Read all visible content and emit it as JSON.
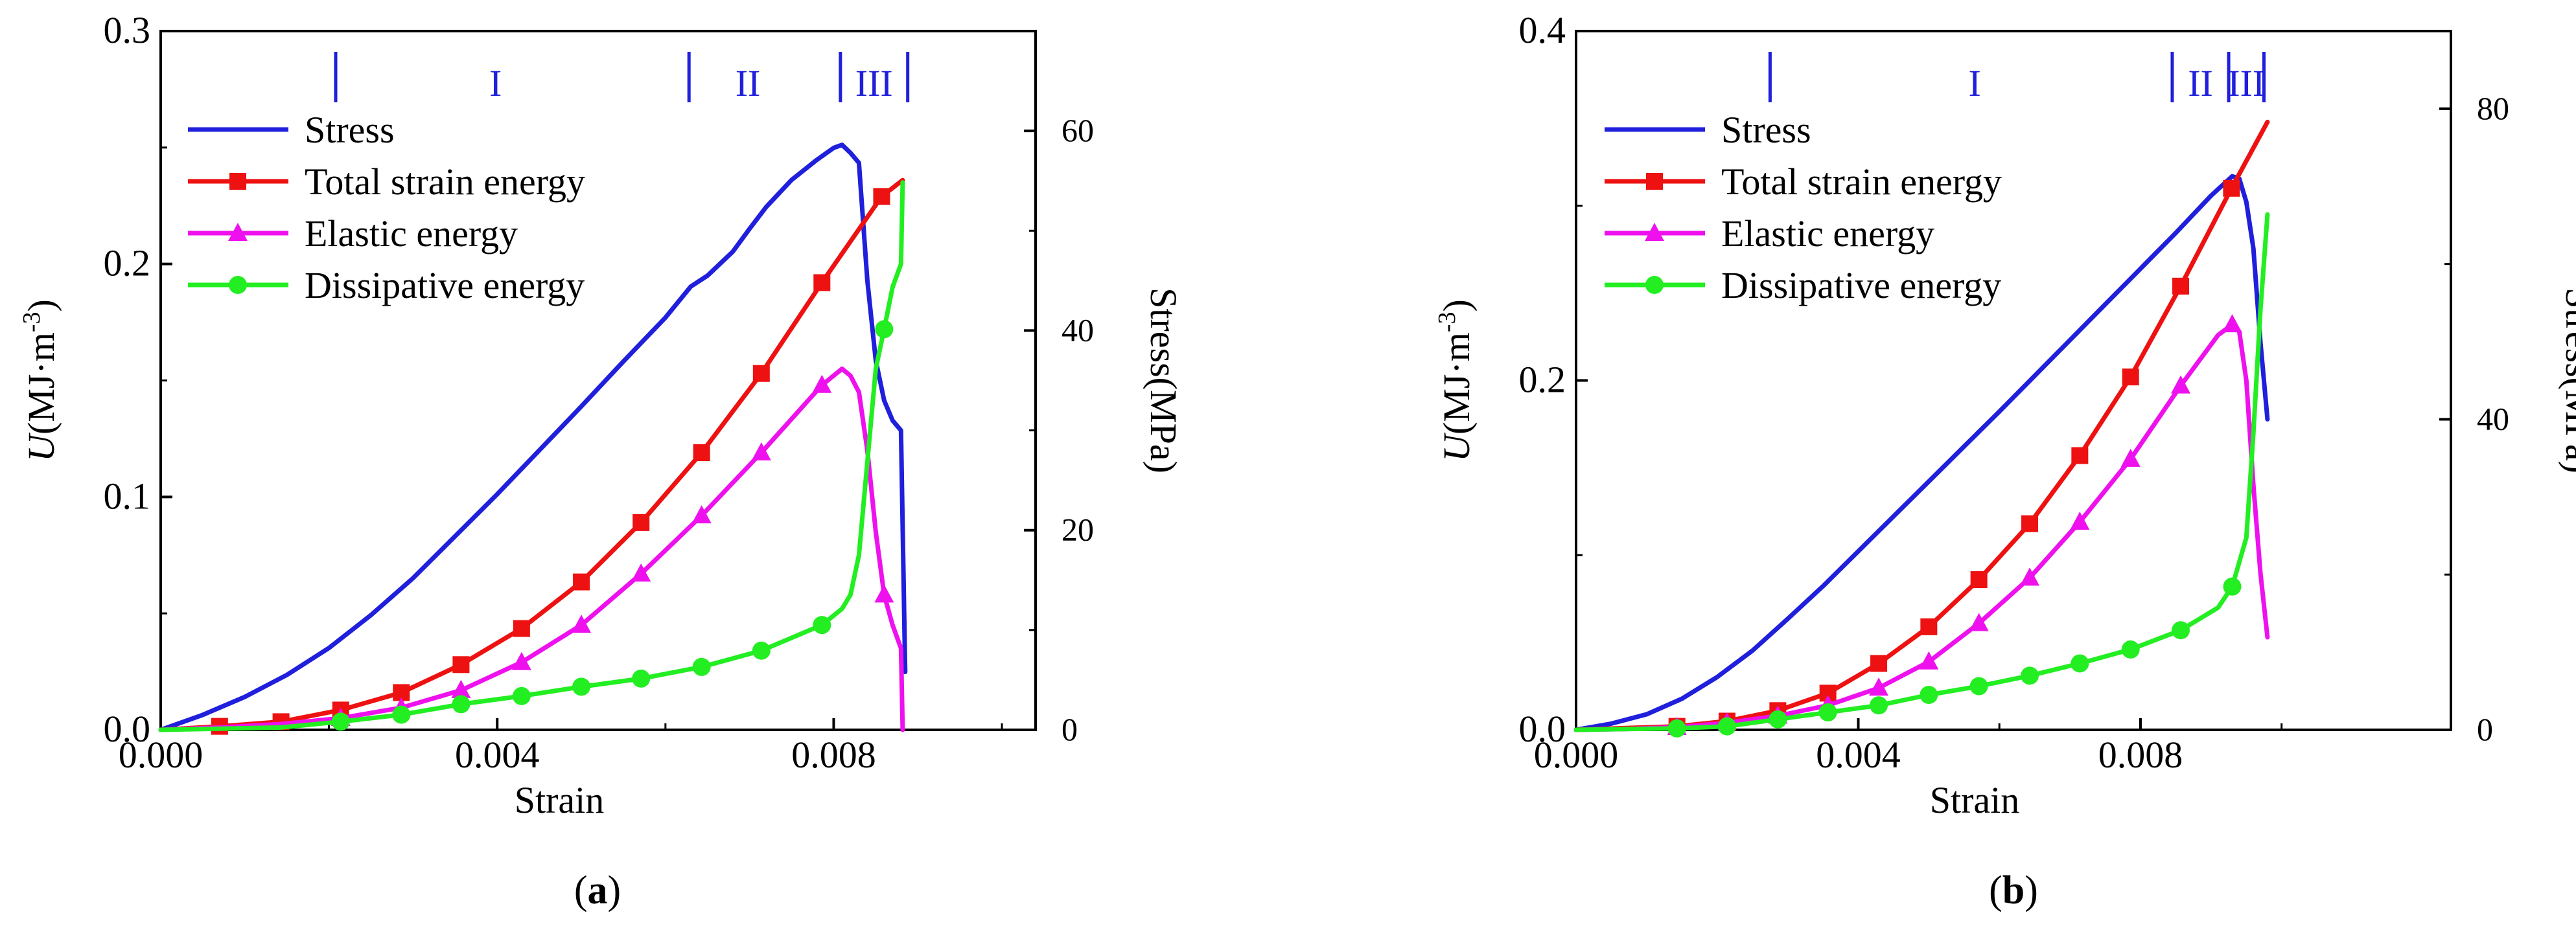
{
  "colors": {
    "stress": "#1f1fdc",
    "total": "#ee1111",
    "elastic": "#ee11ee",
    "dissipative": "#22ee22",
    "stage": "#1f1fdc",
    "axis": "#000000"
  },
  "chart_data": [
    {
      "type": "line",
      "panel_label": "a",
      "xlabel": "Strain",
      "ylabel_main": "U",
      "ylabel_unit": "(MJ·m",
      "ylabel_exp": "-3",
      "ylabel_close": ")",
      "y2label": "Stress(MPa)",
      "xlim": [
        0,
        0.0104
      ],
      "ylim": [
        0,
        0.3
      ],
      "y2lim": [
        0,
        70
      ],
      "xticks": [
        0,
        0.004,
        0.008
      ],
      "xtick_labels": [
        "0.000",
        "0.004",
        "0.008"
      ],
      "yticks": [
        0,
        0.1,
        0.2,
        0.3
      ],
      "ytick_labels": [
        "0.0",
        "0.1",
        "0.2",
        "0.3"
      ],
      "y2ticks": [
        0,
        20,
        40,
        60
      ],
      "y2tick_labels": [
        "0",
        "20",
        "40",
        "60"
      ],
      "legend": [
        "Stress",
        "Total strain energy",
        "Elastic energy",
        "Dissipative energy"
      ],
      "stages": {
        "boundaries": [
          0.00208,
          0.00628,
          0.00808,
          0.00888
        ],
        "labels": [
          {
            "text": "I",
            "x": 0.00398
          },
          {
            "text": "II",
            "x": 0.00698
          },
          {
            "text": "III",
            "x": 0.00848
          }
        ]
      },
      "series": [
        {
          "name": "Stress",
          "axis": "y2",
          "x": [
            0,
            0.0005,
            0.001,
            0.0015,
            0.002,
            0.0025,
            0.003,
            0.0035,
            0.004,
            0.0045,
            0.005,
            0.0055,
            0.006,
            0.0063,
            0.0065,
            0.0068,
            0.007,
            0.0072,
            0.0075,
            0.0078,
            0.008,
            0.0081,
            0.0082,
            0.0083,
            0.0084,
            0.0085,
            0.0086,
            0.0087,
            0.0088,
            0.00885
          ],
          "y": [
            0,
            1.5,
            3.3,
            5.5,
            8.2,
            11.5,
            15.2,
            19.4,
            23.6,
            28.0,
            32.4,
            36.9,
            41.3,
            44.4,
            45.5,
            47.9,
            50.2,
            52.4,
            55.1,
            57.1,
            58.3,
            58.6,
            57.8,
            56.8,
            45.0,
            37.0,
            33.0,
            31.0,
            30.0,
            5.8
          ]
        },
        {
          "name": "Total strain energy",
          "axis": "y",
          "x": [
            0,
            0.0007,
            0.00143,
            0.00214,
            0.00286,
            0.00357,
            0.00429,
            0.005,
            0.00571,
            0.00643,
            0.00714,
            0.00786,
            0.00857,
            0.00882
          ],
          "y": [
            0,
            0.0015,
            0.0035,
            0.0085,
            0.016,
            0.028,
            0.0435,
            0.0635,
            0.089,
            0.119,
            0.153,
            0.192,
            0.229,
            0.236
          ],
          "markers": [
            0.0007,
            0.00143,
            0.00214,
            0.00286,
            0.00357,
            0.00429,
            0.005,
            0.00571,
            0.00643,
            0.00714,
            0.00786,
            0.00857
          ]
        },
        {
          "name": "Elastic energy",
          "axis": "y",
          "x": [
            0,
            0.0007,
            0.00143,
            0.00214,
            0.00286,
            0.00357,
            0.00429,
            0.005,
            0.00571,
            0.00643,
            0.00714,
            0.00786,
            0.0081,
            0.0082,
            0.0083,
            0.0084,
            0.0085,
            0.0086,
            0.0087,
            0.0088,
            0.00882
          ],
          "y": [
            0,
            0.001,
            0.0025,
            0.005,
            0.0095,
            0.017,
            0.029,
            0.045,
            0.067,
            0.092,
            0.119,
            0.148,
            0.155,
            0.152,
            0.145,
            0.12,
            0.085,
            0.058,
            0.045,
            0.035,
            0
          ],
          "markers": [
            0.00214,
            0.00286,
            0.00357,
            0.00429,
            0.005,
            0.00571,
            0.00643,
            0.00714,
            0.00786,
            0.0086
          ]
        },
        {
          "name": "Dissipative energy",
          "axis": "y",
          "x": [
            0,
            0.0007,
            0.00143,
            0.00214,
            0.00286,
            0.00357,
            0.00429,
            0.005,
            0.00571,
            0.00643,
            0.00714,
            0.00786,
            0.0081,
            0.0082,
            0.0083,
            0.0084,
            0.0085,
            0.0086,
            0.0087,
            0.0088,
            0.00882
          ],
          "y": [
            0,
            0.0005,
            0.001,
            0.0035,
            0.0065,
            0.011,
            0.0145,
            0.0185,
            0.022,
            0.027,
            0.034,
            0.045,
            0.052,
            0.058,
            0.075,
            0.115,
            0.155,
            0.172,
            0.19,
            0.2,
            0.235
          ],
          "markers": [
            0.00214,
            0.00286,
            0.00357,
            0.00429,
            0.005,
            0.00571,
            0.00643,
            0.00714,
            0.00786,
            0.0086
          ]
        }
      ]
    },
    {
      "type": "line",
      "panel_label": "b",
      "xlabel": "Strain",
      "ylabel_main": "U",
      "ylabel_unit": "(MJ·m",
      "ylabel_exp": "-3",
      "ylabel_close": ")",
      "y2label": "Stress(MPa)",
      "xlim": [
        0,
        0.0124
      ],
      "ylim": [
        0,
        0.4
      ],
      "y2lim": [
        0,
        90
      ],
      "xticks": [
        0,
        0.004,
        0.008
      ],
      "xtick_labels": [
        "0.000",
        "0.004",
        "0.008"
      ],
      "yticks": [
        0,
        0.2,
        0.4
      ],
      "ytick_labels": [
        "0.0",
        "0.2",
        "0.4"
      ],
      "y2ticks": [
        0,
        40,
        80
      ],
      "y2tick_labels": [
        "0",
        "40",
        "80"
      ],
      "legend": [
        "Stress",
        "Total strain energy",
        "Elastic energy",
        "Dissipative energy"
      ],
      "stages": {
        "boundaries": [
          0.00275,
          0.00845,
          0.00925,
          0.00975
        ],
        "labels": [
          {
            "text": "I",
            "x": 0.00565
          },
          {
            "text": "II",
            "x": 0.00885
          },
          {
            "text": "III",
            "x": 0.0095
          }
        ]
      },
      "series": [
        {
          "name": "Stress",
          "axis": "y2",
          "x": [
            0,
            0.0005,
            0.001,
            0.0015,
            0.002,
            0.0025,
            0.003,
            0.0035,
            0.004,
            0.0045,
            0.005,
            0.0055,
            0.006,
            0.0065,
            0.007,
            0.0075,
            0.008,
            0.0085,
            0.009,
            0.0093,
            0.0094,
            0.0095,
            0.0096,
            0.0097,
            0.0098
          ],
          "y": [
            0,
            0.8,
            2.0,
            4.0,
            6.8,
            10.2,
            14.3,
            18.5,
            23.0,
            27.5,
            32.0,
            36.5,
            41.0,
            45.6,
            50.2,
            54.8,
            59.4,
            64.0,
            68.8,
            71.3,
            71.0,
            68.0,
            62.0,
            50.0,
            40.0
          ]
        },
        {
          "name": "Total strain energy",
          "axis": "y",
          "x": [
            0,
            0.0007,
            0.00143,
            0.00214,
            0.00286,
            0.00357,
            0.00429,
            0.005,
            0.00571,
            0.00643,
            0.00714,
            0.00786,
            0.00857,
            0.00929,
            0.0098
          ],
          "y": [
            0,
            0.001,
            0.002,
            0.005,
            0.011,
            0.021,
            0.038,
            0.059,
            0.086,
            0.118,
            0.157,
            0.202,
            0.254,
            0.31,
            0.348
          ],
          "markers": [
            0.00143,
            0.00214,
            0.00286,
            0.00357,
            0.00429,
            0.005,
            0.00571,
            0.00643,
            0.00714,
            0.00786,
            0.00857,
            0.00929
          ]
        },
        {
          "name": "Elastic energy",
          "axis": "y",
          "x": [
            0,
            0.0007,
            0.00143,
            0.00214,
            0.00286,
            0.00357,
            0.00429,
            0.005,
            0.00571,
            0.00643,
            0.00714,
            0.00786,
            0.00857,
            0.0091,
            0.0093,
            0.0094,
            0.0095,
            0.0096,
            0.0097,
            0.0098
          ],
          "y": [
            0,
            0.0005,
            0.0015,
            0.004,
            0.008,
            0.014,
            0.024,
            0.039,
            0.061,
            0.087,
            0.119,
            0.155,
            0.197,
            0.226,
            0.232,
            0.228,
            0.2,
            0.14,
            0.09,
            0.053
          ],
          "markers": [
            0.00143,
            0.00214,
            0.00286,
            0.00357,
            0.00429,
            0.005,
            0.00571,
            0.00643,
            0.00714,
            0.00786,
            0.00857,
            0.0093
          ]
        },
        {
          "name": "Dissipative energy",
          "axis": "y",
          "x": [
            0,
            0.0007,
            0.00143,
            0.00214,
            0.00286,
            0.00357,
            0.00429,
            0.005,
            0.00571,
            0.00643,
            0.00714,
            0.00786,
            0.00857,
            0.0091,
            0.0093,
            0.0095,
            0.0096,
            0.0097,
            0.0098
          ],
          "y": [
            0,
            0.0005,
            0.0008,
            0.002,
            0.006,
            0.01,
            0.014,
            0.02,
            0.025,
            0.031,
            0.038,
            0.046,
            0.057,
            0.07,
            0.082,
            0.11,
            0.17,
            0.24,
            0.295
          ],
          "markers": [
            0.00143,
            0.00214,
            0.00286,
            0.00357,
            0.00429,
            0.005,
            0.00571,
            0.00643,
            0.00714,
            0.00786,
            0.00857,
            0.0093
          ]
        }
      ]
    }
  ]
}
